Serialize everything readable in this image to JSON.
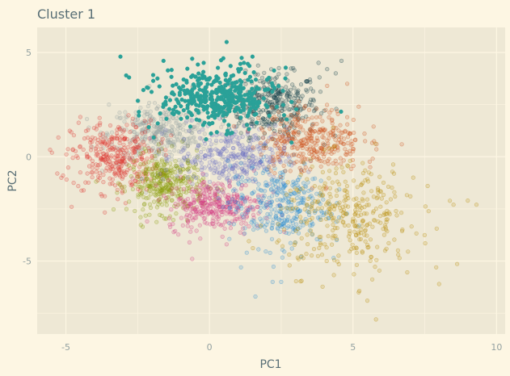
{
  "chart_data": {
    "type": "scatter",
    "title": "Cluster 1",
    "xlabel": "PC1",
    "ylabel": "PC2",
    "xlim": [
      -6,
      10.3
    ],
    "ylim": [
      -8.5,
      6.2
    ],
    "x_ticks": [
      -5,
      0,
      5,
      10
    ],
    "y_ticks": [
      -5,
      0,
      5
    ],
    "x_tick_labels": [
      "-5",
      "0",
      "5",
      "10"
    ],
    "y_tick_labels": [
      "-5",
      "0",
      "5"
    ],
    "grid": true,
    "legend": "none",
    "highlighted_cluster": "1",
    "colors": {
      "page_background": "#fdf6e3",
      "panel_background": "#eee8d5",
      "grid": "#fdf6e3",
      "highlight": "#2aa198"
    },
    "series": [
      {
        "cluster": "1",
        "color": "#2aa198",
        "highlighted": true,
        "center": [
          0.3,
          2.8
        ],
        "spread": [
          1.0,
          0.7
        ],
        "points": [
          [
            -3.1,
            4.8
          ],
          [
            -2.9,
            3.9
          ],
          [
            -2.8,
            3.8
          ],
          [
            -2.3,
            3.2
          ],
          [
            -1.6,
            4.6
          ],
          [
            -0.6,
            4.7
          ],
          [
            -0.2,
            4.5
          ],
          [
            0.6,
            5.5
          ],
          [
            1.2,
            4.5
          ],
          [
            1.5,
            4.8
          ],
          [
            1.0,
            4.2
          ],
          [
            -0.9,
            3.7
          ],
          [
            2.2,
            3.4
          ]
        ]
      },
      {
        "cluster": "2",
        "color": "#073642",
        "highlighted": false,
        "center": [
          2.2,
          2.5
        ],
        "spread": [
          0.8,
          0.75
        ],
        "points": [
          [
            3.8,
            4.5
          ],
          [
            4.1,
            4.2
          ],
          [
            4.4,
            4.0
          ],
          [
            4.6,
            4.6
          ],
          [
            3.5,
            3.7
          ]
        ]
      },
      {
        "cluster": "3",
        "color": "#93a1a1",
        "highlighted": false,
        "center": [
          -1.7,
          1.1
        ],
        "spread": [
          0.9,
          0.7
        ],
        "points": [
          [
            -3.5,
            2.5
          ],
          [
            -4.2,
            1.4
          ]
        ]
      },
      {
        "cluster": "4",
        "color": "#dc322f",
        "highlighted": false,
        "center": [
          -3.3,
          0.0
        ],
        "spread": [
          0.75,
          0.85
        ],
        "points": [
          [
            -5.3,
            -0.8
          ],
          [
            -5.1,
            -0.9
          ],
          [
            -4.8,
            -2.4
          ]
        ]
      },
      {
        "cluster": "5",
        "color": "#859900",
        "highlighted": false,
        "center": [
          -1.5,
          -1.3
        ],
        "spread": [
          0.65,
          0.7
        ],
        "points": [
          [
            -2.4,
            -2.9
          ],
          [
            -2.6,
            -2.6
          ]
        ]
      },
      {
        "cluster": "6",
        "color": "#6c71c4",
        "highlighted": false,
        "center": [
          0.8,
          0.0
        ],
        "spread": [
          0.95,
          0.7
        ],
        "points": [
          [
            -0.8,
            1.7
          ],
          [
            2.3,
            1.5
          ]
        ]
      },
      {
        "cluster": "7",
        "color": "#d33682",
        "highlighted": false,
        "center": [
          0.2,
          -2.3
        ],
        "spread": [
          0.85,
          0.6
        ],
        "points": [
          [
            -0.6,
            -4.9
          ],
          [
            0.6,
            -4.2
          ],
          [
            1.2,
            -3.7
          ]
        ]
      },
      {
        "cluster": "8",
        "color": "#268bd2",
        "highlighted": false,
        "center": [
          2.4,
          -2.3
        ],
        "spread": [
          0.85,
          1.0
        ],
        "points": [
          [
            1.6,
            -6.7
          ],
          [
            2.2,
            -6.0
          ],
          [
            2.5,
            -6.0
          ],
          [
            1.1,
            -5.3
          ],
          [
            3.2,
            -4.8
          ],
          [
            1.3,
            -4.6
          ]
        ]
      },
      {
        "cluster": "9",
        "color": "#cb4b16",
        "highlighted": false,
        "center": [
          3.5,
          0.8
        ],
        "spread": [
          0.9,
          0.75
        ],
        "points": [
          [
            4.8,
            3.5
          ],
          [
            5.2,
            2.4
          ],
          [
            6.7,
            0.6
          ],
          [
            5.6,
            -0.5
          ],
          [
            4.1,
            3.4
          ]
        ]
      },
      {
        "cluster": "10",
        "color": "#b58900",
        "highlighted": false,
        "center": [
          4.8,
          -2.9
        ],
        "spread": [
          1.2,
          1.3
        ],
        "points": [
          [
            5.2,
            -6.5
          ],
          [
            5.5,
            -6.9
          ],
          [
            5.8,
            -7.8
          ],
          [
            7.9,
            -5.3
          ],
          [
            8.0,
            -6.1
          ],
          [
            9.0,
            -2.1
          ],
          [
            9.3,
            -2.3
          ],
          [
            8.5,
            -2.3
          ],
          [
            7.1,
            -1.0
          ],
          [
            7.0,
            -1.9
          ],
          [
            7.6,
            -1.4
          ],
          [
            6.5,
            -2.6
          ],
          [
            6.2,
            -3.0
          ],
          [
            6.0,
            -2.0
          ]
        ]
      }
    ]
  }
}
